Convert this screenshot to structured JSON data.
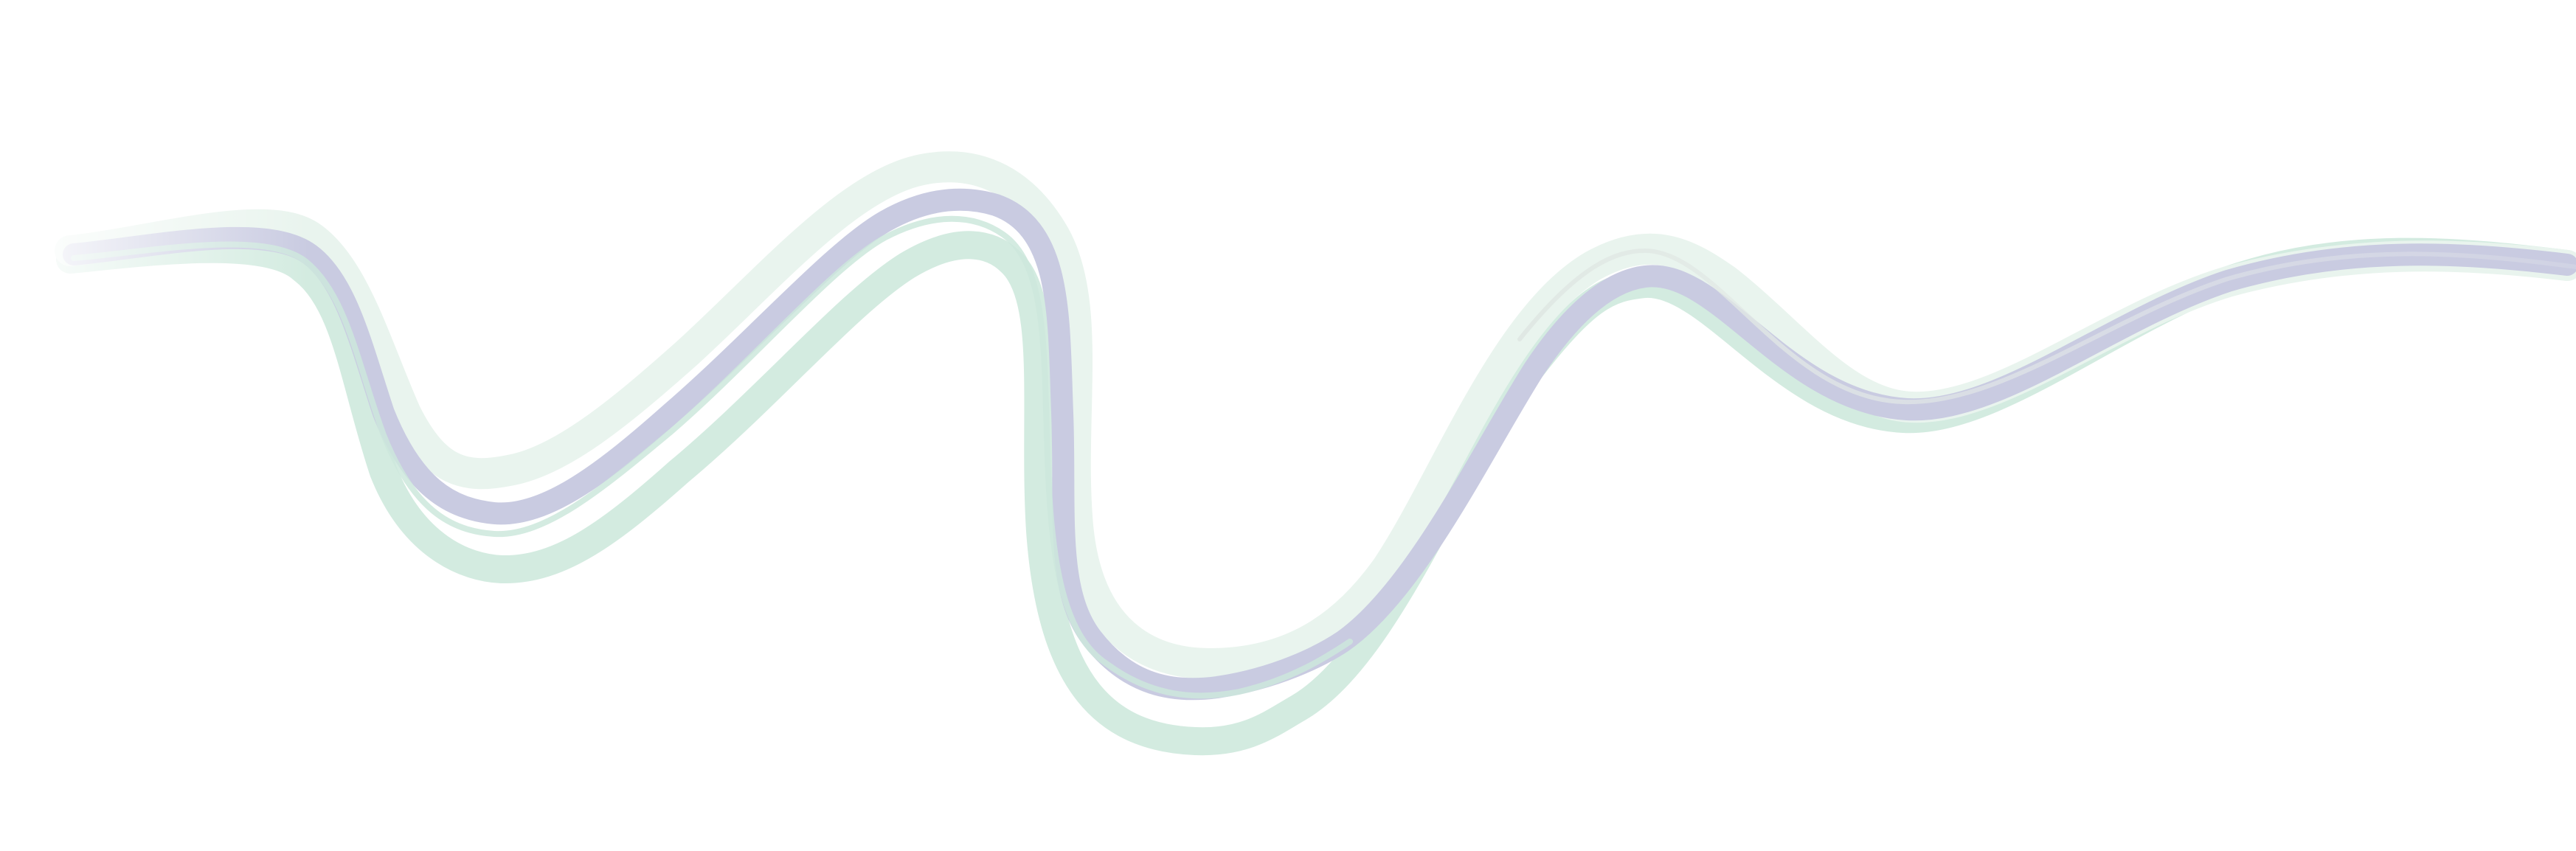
{
  "graphic": {
    "kind": "decorative-flowing-ribbons",
    "background": "#ffffff",
    "colors": {
      "mint_light": "#eaf5ef",
      "mint": "#cde9dd",
      "lavender": "#c6c9df",
      "grey_fade": "#f3f5f4"
    }
  }
}
